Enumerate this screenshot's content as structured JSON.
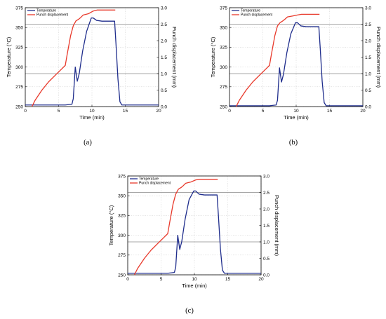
{
  "chart_data": [
    {
      "panel_label": "(a)",
      "type": "line",
      "xlabel": "Time (min)",
      "ylabel": "Temperature (°C)",
      "y2label": "Punch displacement (mm)",
      "xlim": [
        0,
        20
      ],
      "ylim": [
        250,
        375
      ],
      "y2lim": [
        0,
        3.0
      ],
      "x_ticks": [
        "0",
        "5",
        "10",
        "15",
        "20"
      ],
      "y_ticks": [
        "250",
        "275",
        "300",
        "325",
        "350",
        "375"
      ],
      "y2_ticks": [
        "0.0",
        "0.5",
        "1.0",
        "1.5",
        "2.0",
        "2.5",
        "3.0"
      ],
      "grid": true,
      "legend_position": "top-left",
      "series": [
        {
          "name": "Temperature",
          "axis": "left",
          "color": "#1f2d8c",
          "x": [
            0,
            6.0,
            7.0,
            7.2,
            7.5,
            7.8,
            8.1,
            8.6,
            9.2,
            9.9,
            10.2,
            10.7,
            11.5,
            12.5,
            13.4,
            13.6,
            13.9,
            14.2,
            14.5,
            15,
            20
          ],
          "y": [
            252,
            252,
            253,
            260,
            300,
            282,
            292,
            320,
            345,
            362,
            362,
            359,
            358,
            358,
            358,
            330,
            285,
            256,
            252,
            252,
            252
          ]
        },
        {
          "name": "Punch displacement",
          "axis": "right",
          "color": "#e8392b",
          "x": [
            1.0,
            1.5,
            2.5,
            3.5,
            4.5,
            5.5,
            6.0,
            6.3,
            6.8,
            7.2,
            7.6,
            8.0,
            8.3,
            8.7,
            9.5,
            10.2,
            10.8,
            11.3,
            13.5
          ],
          "y": [
            0.0,
            0.2,
            0.5,
            0.75,
            0.95,
            1.15,
            1.25,
            1.6,
            2.15,
            2.45,
            2.6,
            2.65,
            2.7,
            2.78,
            2.82,
            2.9,
            2.93,
            2.93,
            2.93
          ]
        }
      ]
    },
    {
      "panel_label": "(b)",
      "type": "line",
      "xlabel": "Time (min)",
      "ylabel": "Temperature (°C)",
      "y2label": "Punch displacement (mm)",
      "xlim": [
        0,
        20
      ],
      "ylim": [
        250,
        375
      ],
      "y2lim": [
        0,
        3.0
      ],
      "x_ticks": [
        "0",
        "5",
        "10",
        "15",
        "20"
      ],
      "y_ticks": [
        "250",
        "275",
        "300",
        "325",
        "350",
        "375"
      ],
      "y2_ticks": [
        "0.0",
        "0.5",
        "1.0",
        "1.5",
        "2.0",
        "2.5",
        "3.0"
      ],
      "grid": true,
      "legend_position": "top-left",
      "series": [
        {
          "name": "Temperature",
          "axis": "left",
          "color": "#1f2d8c",
          "x": [
            0,
            6.0,
            7.0,
            7.2,
            7.5,
            7.8,
            8.1,
            8.6,
            9.2,
            9.9,
            10.2,
            10.7,
            11.5,
            12.5,
            13.4,
            13.6,
            13.9,
            14.2,
            14.5,
            15,
            20
          ],
          "y": [
            251,
            251,
            252,
            258,
            299,
            281,
            291,
            318,
            342,
            356,
            356,
            352,
            351,
            351,
            351,
            325,
            282,
            255,
            251,
            251,
            251
          ]
        },
        {
          "name": "Punch displacement",
          "axis": "right",
          "color": "#e8392b",
          "x": [
            1.0,
            1.5,
            2.5,
            3.5,
            4.5,
            5.5,
            6.0,
            6.3,
            6.8,
            7.2,
            7.6,
            8.0,
            8.3,
            8.7,
            9.5,
            10.2,
            10.8,
            11.3,
            13.5
          ],
          "y": [
            0.0,
            0.2,
            0.5,
            0.75,
            0.95,
            1.15,
            1.25,
            1.6,
            2.15,
            2.45,
            2.55,
            2.6,
            2.65,
            2.72,
            2.75,
            2.78,
            2.8,
            2.8,
            2.8
          ]
        }
      ]
    },
    {
      "panel_label": "(c)",
      "type": "line",
      "xlabel": "Time (min)",
      "ylabel": "Temperature (°C)",
      "y2label": "Punch displacement (mm)",
      "xlim": [
        0,
        20
      ],
      "ylim": [
        250,
        375
      ],
      "y2lim": [
        0,
        3.0
      ],
      "x_ticks": [
        "0",
        "5",
        "10",
        "15",
        "20"
      ],
      "y_ticks": [
        "250",
        "275",
        "300",
        "325",
        "350",
        "375"
      ],
      "y2_ticks": [
        "0.0",
        "0.5",
        "1.0",
        "1.5",
        "2.0",
        "2.5",
        "3.0"
      ],
      "grid": true,
      "legend_position": "top-left",
      "series": [
        {
          "name": "Temperature",
          "axis": "left",
          "color": "#1f2d8c",
          "x": [
            0,
            6.0,
            7.0,
            7.2,
            7.5,
            7.8,
            8.1,
            8.6,
            9.2,
            9.9,
            10.2,
            10.7,
            11.5,
            12.5,
            13.4,
            13.6,
            13.9,
            14.2,
            14.5,
            15,
            20
          ],
          "y": [
            252,
            252,
            253,
            260,
            300,
            282,
            292,
            320,
            345,
            356,
            356,
            352,
            351,
            351,
            351,
            325,
            283,
            256,
            252,
            252,
            252
          ]
        },
        {
          "name": "Punch displacement",
          "axis": "right",
          "color": "#e8392b",
          "x": [
            1.0,
            1.5,
            2.5,
            3.5,
            4.5,
            5.5,
            6.0,
            6.3,
            6.8,
            7.2,
            7.6,
            8.0,
            8.3,
            8.7,
            9.5,
            10.2,
            10.8,
            11.3,
            13.5
          ],
          "y": [
            0.0,
            0.2,
            0.5,
            0.75,
            0.95,
            1.15,
            1.25,
            1.6,
            2.15,
            2.45,
            2.6,
            2.65,
            2.7,
            2.78,
            2.82,
            2.88,
            2.9,
            2.9,
            2.9
          ]
        }
      ]
    }
  ]
}
